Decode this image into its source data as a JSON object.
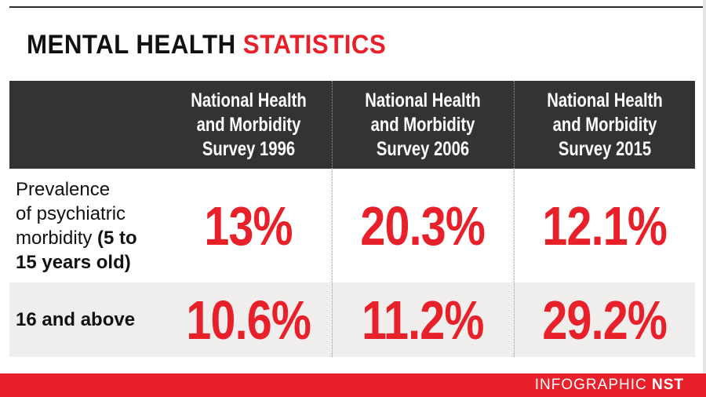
{
  "title": {
    "part1": "MENTAL HEALTH",
    "part2": "STATISTICS"
  },
  "columns": [
    {
      "line1": "National Health",
      "line2": "and Morbidity",
      "line3": "Survey 1996"
    },
    {
      "line1": "National Health",
      "line2": "and Morbidity",
      "line3": "Survey 2006"
    },
    {
      "line1": "National Health",
      "line2": "and Morbidity",
      "line3": "Survey 2015"
    }
  ],
  "rows": [
    {
      "label_line1": "Prevalence",
      "label_line2": "of psychiatric",
      "label_line3": "morbidity",
      "label_bold_a": "(5 to",
      "label_bold_b": "15 years old)",
      "values": [
        "13%",
        "20.3%",
        "12.1%"
      ]
    },
    {
      "label": "16 and above",
      "values": [
        "10.6%",
        "11.2%",
        "29.2%"
      ]
    }
  ],
  "footer": {
    "credit_prefix": "INFOGRAPHIC",
    "credit_brand": "NST"
  },
  "colors": {
    "accent": "#e8202a",
    "header_bg": "#333333",
    "row_alt_bg": "#efeeec"
  }
}
